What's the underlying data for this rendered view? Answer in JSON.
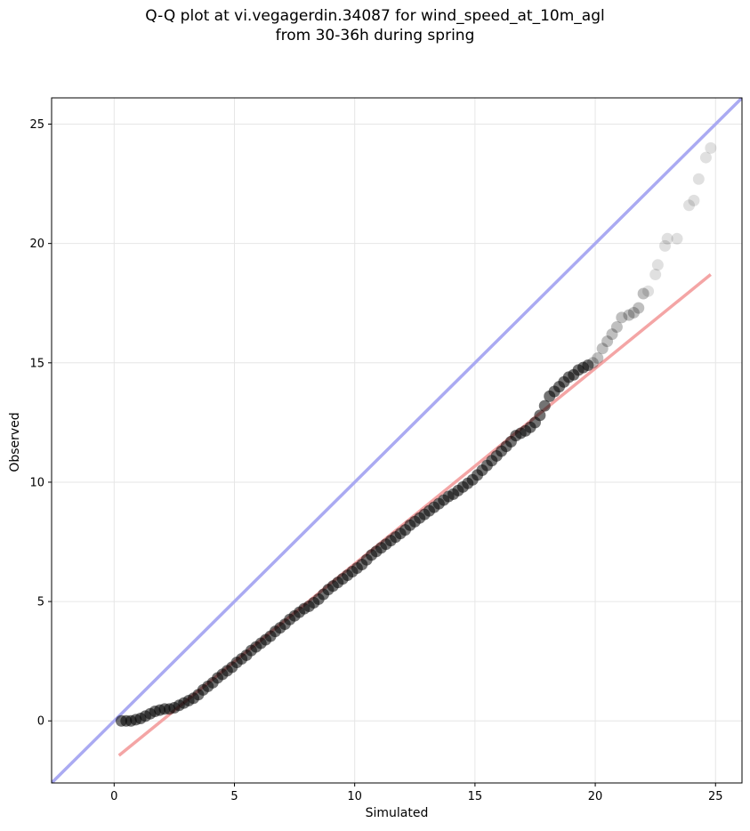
{
  "chart_data": {
    "type": "scatter",
    "title": "Q-Q plot at vi.vegagerdin.34087 for wind_speed_at_10m_agl",
    "subtitle": "from 30-36h during spring",
    "xlabel": "Simulated",
    "ylabel": "Observed",
    "xlim": [
      -2.6,
      26.1
    ],
    "ylim": [
      -2.6,
      26.1
    ],
    "xticks": [
      0,
      5,
      10,
      15,
      20,
      25
    ],
    "yticks": [
      0,
      5,
      10,
      15,
      20,
      25
    ],
    "grid": true,
    "colors": {
      "points": "#000000",
      "identity_line": "#aaaaf2",
      "fit_line": "#f4a5a5",
      "grid": "#e6e6e6"
    },
    "identity_line": {
      "x": [
        -2.6,
        26.1
      ],
      "y": [
        -2.6,
        26.1
      ]
    },
    "fit_line": {
      "x": [
        0.2,
        24.8
      ],
      "y": [
        -1.45,
        18.7
      ]
    },
    "series": [
      {
        "name": "",
        "points": [
          [
            0.3,
            0.0
          ],
          [
            0.5,
            0.0
          ],
          [
            0.7,
            0.0
          ],
          [
            0.9,
            0.05
          ],
          [
            1.1,
            0.1
          ],
          [
            1.3,
            0.2
          ],
          [
            1.5,
            0.3
          ],
          [
            1.7,
            0.4
          ],
          [
            1.9,
            0.45
          ],
          [
            2.1,
            0.5
          ],
          [
            2.3,
            0.5
          ],
          [
            2.5,
            0.55
          ],
          [
            2.7,
            0.65
          ],
          [
            2.9,
            0.75
          ],
          [
            3.1,
            0.85
          ],
          [
            3.3,
            0.95
          ],
          [
            3.5,
            1.1
          ],
          [
            3.7,
            1.3
          ],
          [
            3.9,
            1.45
          ],
          [
            4.1,
            1.6
          ],
          [
            4.3,
            1.8
          ],
          [
            4.5,
            1.95
          ],
          [
            4.7,
            2.1
          ],
          [
            4.9,
            2.25
          ],
          [
            5.1,
            2.45
          ],
          [
            5.3,
            2.6
          ],
          [
            5.5,
            2.75
          ],
          [
            5.7,
            2.95
          ],
          [
            5.9,
            3.1
          ],
          [
            6.1,
            3.25
          ],
          [
            6.3,
            3.4
          ],
          [
            6.5,
            3.55
          ],
          [
            6.7,
            3.75
          ],
          [
            6.9,
            3.9
          ],
          [
            7.1,
            4.05
          ],
          [
            7.3,
            4.25
          ],
          [
            7.5,
            4.4
          ],
          [
            7.7,
            4.55
          ],
          [
            7.9,
            4.7
          ],
          [
            8.1,
            4.8
          ],
          [
            8.3,
            4.95
          ],
          [
            8.5,
            5.1
          ],
          [
            8.7,
            5.3
          ],
          [
            8.9,
            5.5
          ],
          [
            9.1,
            5.65
          ],
          [
            9.3,
            5.8
          ],
          [
            9.5,
            5.95
          ],
          [
            9.7,
            6.1
          ],
          [
            9.9,
            6.25
          ],
          [
            10.1,
            6.4
          ],
          [
            10.3,
            6.55
          ],
          [
            10.5,
            6.75
          ],
          [
            10.7,
            6.95
          ],
          [
            10.9,
            7.1
          ],
          [
            11.1,
            7.25
          ],
          [
            11.3,
            7.4
          ],
          [
            11.5,
            7.55
          ],
          [
            11.7,
            7.7
          ],
          [
            11.9,
            7.85
          ],
          [
            12.1,
            8.0
          ],
          [
            12.3,
            8.2
          ],
          [
            12.5,
            8.35
          ],
          [
            12.7,
            8.5
          ],
          [
            12.9,
            8.65
          ],
          [
            13.1,
            8.8
          ],
          [
            13.3,
            8.95
          ],
          [
            13.5,
            9.1
          ],
          [
            13.7,
            9.25
          ],
          [
            13.9,
            9.4
          ],
          [
            14.1,
            9.5
          ],
          [
            14.3,
            9.65
          ],
          [
            14.5,
            9.8
          ],
          [
            14.7,
            9.95
          ],
          [
            14.9,
            10.1
          ],
          [
            15.1,
            10.3
          ],
          [
            15.3,
            10.5
          ],
          [
            15.5,
            10.7
          ],
          [
            15.7,
            10.9
          ],
          [
            15.9,
            11.1
          ],
          [
            16.1,
            11.3
          ],
          [
            16.3,
            11.5
          ],
          [
            16.5,
            11.7
          ],
          [
            16.7,
            11.95
          ],
          [
            16.9,
            12.05
          ],
          [
            17.1,
            12.15
          ],
          [
            17.3,
            12.3
          ],
          [
            17.5,
            12.5
          ],
          [
            17.7,
            12.8
          ],
          [
            17.9,
            13.2
          ],
          [
            18.1,
            13.6
          ],
          [
            18.3,
            13.8
          ],
          [
            18.5,
            14.0
          ],
          [
            18.7,
            14.2
          ],
          [
            18.9,
            14.4
          ],
          [
            19.1,
            14.5
          ],
          [
            19.3,
            14.7
          ],
          [
            19.5,
            14.8
          ],
          [
            19.7,
            14.9
          ],
          [
            19.9,
            15.0
          ],
          [
            20.1,
            15.2
          ],
          [
            20.3,
            15.6
          ],
          [
            20.5,
            15.9
          ],
          [
            20.7,
            16.2
          ],
          [
            20.9,
            16.5
          ],
          [
            21.1,
            16.9
          ],
          [
            21.4,
            17.0
          ],
          [
            21.6,
            17.1
          ],
          [
            21.8,
            17.3
          ],
          [
            22.0,
            17.9
          ],
          [
            22.2,
            18.0
          ],
          [
            22.5,
            18.7
          ],
          [
            22.6,
            19.1
          ],
          [
            22.9,
            19.9
          ],
          [
            23.0,
            20.2
          ],
          [
            23.4,
            20.2
          ],
          [
            23.9,
            21.6
          ],
          [
            24.1,
            21.8
          ],
          [
            24.3,
            22.7
          ],
          [
            24.6,
            23.6
          ],
          [
            24.8,
            24.0
          ]
        ]
      }
    ]
  }
}
